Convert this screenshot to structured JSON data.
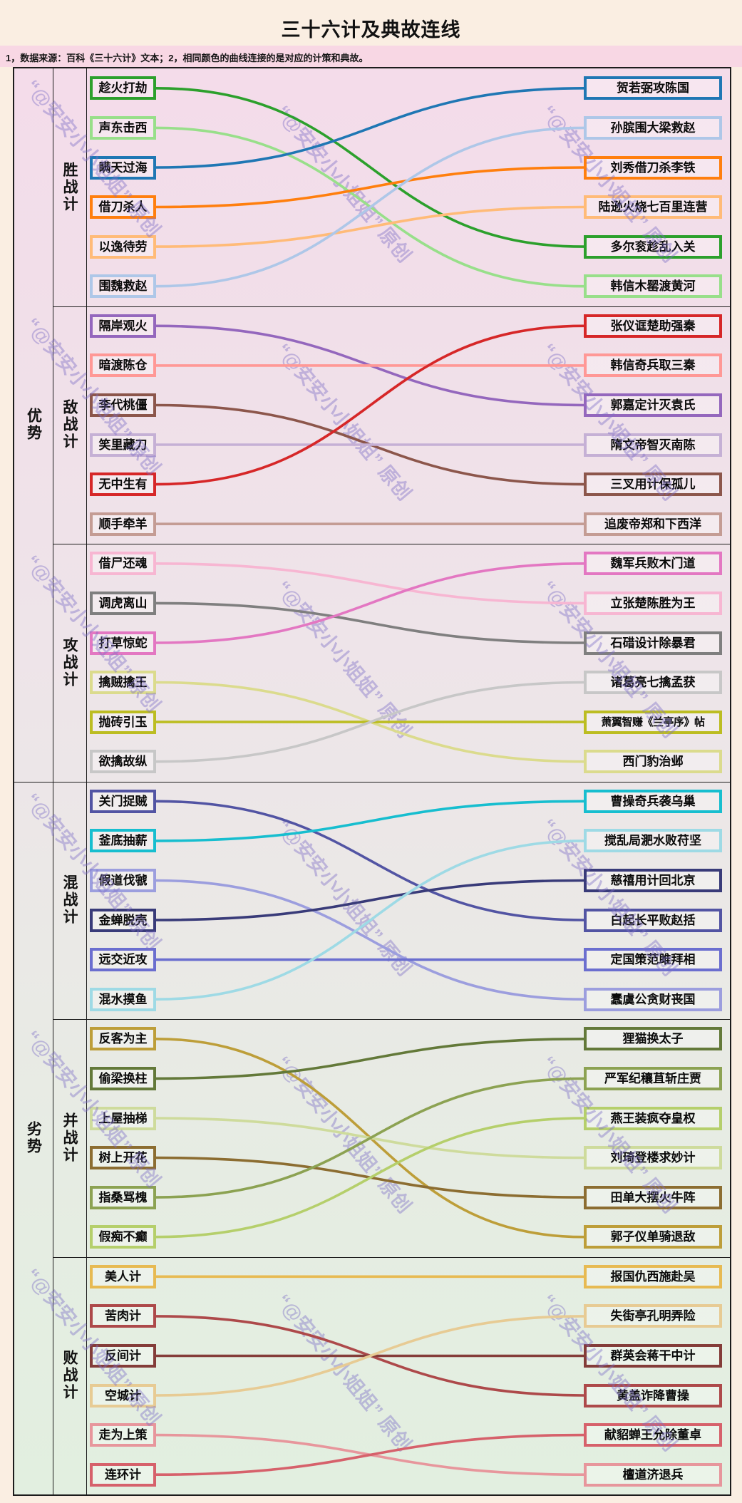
{
  "title": "三十六计及典故连线",
  "subtitle": "1，数据来源：百科《三十六计》文本；2，相同颜色的曲线连接的是对应的计策和典故。",
  "watermark": "“@安安小小姐姐” 原创",
  "groups": [
    {
      "label": "优势"
    },
    {
      "label": "劣势"
    }
  ],
  "sections": [
    {
      "name": "胜战计",
      "pairs": [
        {
          "stratagem": "趁火打劫",
          "allusion": "多尔衮趁乱入关",
          "right_row": 4,
          "color": "#2ca02c"
        },
        {
          "stratagem": "声东击西",
          "allusion": "韩信木罂渡黄河",
          "right_row": 5,
          "color": "#98df8a"
        },
        {
          "stratagem": "瞒天过海",
          "allusion": "贺若弼攻陈国",
          "right_row": 0,
          "color": "#1f77b4"
        },
        {
          "stratagem": "借刀杀人",
          "allusion": "刘秀借刀杀李铁",
          "right_row": 2,
          "color": "#ff7f0e"
        },
        {
          "stratagem": "以逸待劳",
          "allusion": "陆逊火烧七百里连营",
          "right_row": 3,
          "color": "#ffbb78"
        },
        {
          "stratagem": "围魏救赵",
          "allusion": "孙膑围大梁救赵",
          "right_row": 1,
          "color": "#aec7e8"
        }
      ]
    },
    {
      "name": "敌战计",
      "pairs": [
        {
          "stratagem": "隔岸观火",
          "allusion": "郭嘉定计灭袁氏",
          "right_row": 2,
          "color": "#9467bd"
        },
        {
          "stratagem": "暗渡陈仓",
          "allusion": "韩信奇兵取三秦",
          "right_row": 1,
          "color": "#ff9896"
        },
        {
          "stratagem": "李代桃僵",
          "allusion": "三叉用计保孤儿",
          "right_row": 4,
          "color": "#8c564b"
        },
        {
          "stratagem": "笑里藏刀",
          "allusion": "隋文帝智灭南陈",
          "right_row": 3,
          "color": "#c5b0d5"
        },
        {
          "stratagem": "无中生有",
          "allusion": "张仪诓楚助强秦",
          "right_row": 0,
          "color": "#d62728"
        },
        {
          "stratagem": "顺手牵羊",
          "allusion": "追废帝郑和下西洋",
          "right_row": 5,
          "color": "#c49c94"
        }
      ]
    },
    {
      "name": "攻战计",
      "pairs": [
        {
          "stratagem": "借尸还魂",
          "allusion": "立张楚陈胜为王",
          "right_row": 1,
          "color": "#f7b6d2"
        },
        {
          "stratagem": "调虎离山",
          "allusion": "石碏设计除暴君",
          "right_row": 2,
          "color": "#7f7f7f"
        },
        {
          "stratagem": "打草惊蛇",
          "allusion": "魏军兵败木门道",
          "right_row": 0,
          "color": "#e377c2"
        },
        {
          "stratagem": "擒贼擒王",
          "allusion": "西门豹治邺",
          "right_row": 5,
          "color": "#dbdb8d"
        },
        {
          "stratagem": "抛砖引玉",
          "allusion": "萧翼智赚《兰亭序》帖",
          "right_row": 4,
          "color": "#bcbd22"
        },
        {
          "stratagem": "欲擒故纵",
          "allusion": "诸葛亮七擒孟获",
          "right_row": 3,
          "color": "#c7c7c7"
        }
      ]
    },
    {
      "name": "混战计",
      "pairs": [
        {
          "stratagem": "关门捉贼",
          "allusion": "白起长平败赵括",
          "right_row": 3,
          "color": "#5254a3"
        },
        {
          "stratagem": "釜底抽薪",
          "allusion": "曹操奇兵袭乌巢",
          "right_row": 0,
          "color": "#17becf"
        },
        {
          "stratagem": "假道伐虢",
          "allusion": "蠢虞公贪财丧国",
          "right_row": 5,
          "color": "#9c9ede"
        },
        {
          "stratagem": "金蝉脱壳",
          "allusion": "慈禧用计回北京",
          "right_row": 2,
          "color": "#393b79"
        },
        {
          "stratagem": "远交近攻",
          "allusion": "定国策范雎拜相",
          "right_row": 4,
          "color": "#6b6ecf"
        },
        {
          "stratagem": "混水摸鱼",
          "allusion": "搅乱局淝水败苻坚",
          "right_row": 1,
          "color": "#9edae5"
        }
      ]
    },
    {
      "name": "并战计",
      "pairs": [
        {
          "stratagem": "反客为主",
          "allusion": "郭子仪单骑退敌",
          "right_row": 5,
          "color": "#bd9e39"
        },
        {
          "stratagem": "偷梁换柱",
          "allusion": "狸猫换太子",
          "right_row": 0,
          "color": "#637939"
        },
        {
          "stratagem": "上屋抽梯",
          "allusion": "刘琦登楼求妙计",
          "right_row": 3,
          "color": "#cedb9c"
        },
        {
          "stratagem": "树上开花",
          "allusion": "田单大摆火牛阵",
          "right_row": 4,
          "color": "#8c6d31"
        },
        {
          "stratagem": "指桑骂槐",
          "allusion": "严军纪穰苴斩庄贾",
          "right_row": 1,
          "color": "#8ca252"
        },
        {
          "stratagem": "假痴不癫",
          "allusion": "燕王装疯夺皇权",
          "right_row": 2,
          "color": "#b5cf6b"
        }
      ]
    },
    {
      "name": "败战计",
      "pairs": [
        {
          "stratagem": "美人计",
          "allusion": "报国仇西施赴吴",
          "right_row": 0,
          "color": "#e7ba52"
        },
        {
          "stratagem": "苦肉计",
          "allusion": "黄盖诈降曹操",
          "right_row": 3,
          "color": "#ad494a"
        },
        {
          "stratagem": "反间计",
          "allusion": "群英会蒋干中计",
          "right_row": 2,
          "color": "#843c39"
        },
        {
          "stratagem": "空城计",
          "allusion": "失街亭孔明弄险",
          "right_row": 1,
          "color": "#e7cb94"
        },
        {
          "stratagem": "走为上策",
          "allusion": "檀道济退兵",
          "right_row": 5,
          "color": "#e7969c"
        },
        {
          "stratagem": "连环计",
          "allusion": "献貂蝉王允除董卓",
          "right_row": 4,
          "color": "#d6616b"
        }
      ]
    }
  ]
}
